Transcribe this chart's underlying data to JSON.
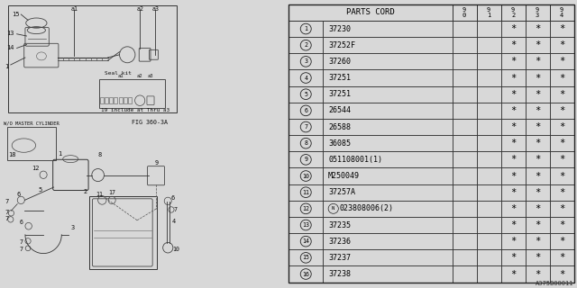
{
  "figure_id": "A375B00011",
  "fig_label": "FIG 360-3A",
  "table_header": "PARTS CORD",
  "year_cols": [
    "9\n0",
    "9\n1",
    "9\n2",
    "9\n3",
    "9\n4"
  ],
  "rows": [
    {
      "num": "1",
      "code": "37230",
      "marks": [
        false,
        false,
        true,
        true,
        true
      ]
    },
    {
      "num": "2",
      "code": "37252F",
      "marks": [
        false,
        false,
        true,
        true,
        true
      ]
    },
    {
      "num": "3",
      "code": "37260",
      "marks": [
        false,
        false,
        true,
        true,
        true
      ]
    },
    {
      "num": "4",
      "code": "37251",
      "marks": [
        false,
        false,
        true,
        true,
        true
      ]
    },
    {
      "num": "5",
      "code": "37251",
      "marks": [
        false,
        false,
        true,
        true,
        true
      ]
    },
    {
      "num": "6",
      "code": "26544",
      "marks": [
        false,
        false,
        true,
        true,
        true
      ]
    },
    {
      "num": "7",
      "code": "26588",
      "marks": [
        false,
        false,
        true,
        true,
        true
      ]
    },
    {
      "num": "8",
      "code": "36085",
      "marks": [
        false,
        false,
        true,
        true,
        true
      ]
    },
    {
      "num": "9",
      "code": "051108001(1)",
      "marks": [
        false,
        false,
        true,
        true,
        true
      ]
    },
    {
      "num": "10",
      "code": "M250049",
      "marks": [
        false,
        false,
        true,
        true,
        true
      ]
    },
    {
      "num": "11",
      "code": "37257A",
      "marks": [
        false,
        false,
        true,
        true,
        true
      ]
    },
    {
      "num": "12",
      "code": "023808006(2)",
      "marks": [
        false,
        false,
        true,
        true,
        true
      ],
      "circled_n": true
    },
    {
      "num": "13",
      "code": "37235",
      "marks": [
        false,
        false,
        true,
        true,
        true
      ]
    },
    {
      "num": "14",
      "code": "37236",
      "marks": [
        false,
        false,
        true,
        true,
        true
      ]
    },
    {
      "num": "15",
      "code": "37237",
      "marks": [
        false,
        false,
        true,
        true,
        true
      ]
    },
    {
      "num": "16",
      "code": "37238",
      "marks": [
        false,
        false,
        true,
        true,
        true
      ]
    }
  ],
  "bg_color": "#d8d8d8",
  "table_bg": "#ffffff",
  "font_color": "#000000",
  "grid_color": "#333333",
  "font_size": 6.0,
  "header_font_size": 6.5
}
